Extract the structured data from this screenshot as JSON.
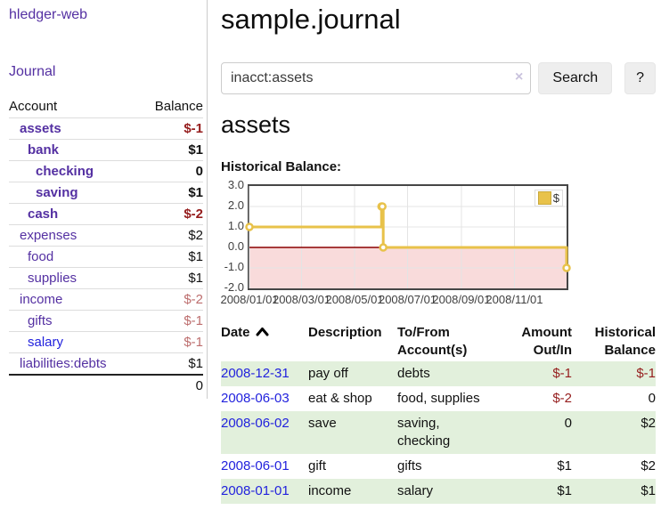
{
  "sidebar": {
    "brand": "hledger-web",
    "nav_journal": "Journal",
    "accounts_table": {
      "header_account": "Account",
      "header_balance": "Balance",
      "rows": [
        {
          "name": "assets",
          "balance": "$-1",
          "depth": 1,
          "bold": true,
          "balance_class": "neg-strong",
          "link": "purple"
        },
        {
          "name": "bank",
          "balance": "$1",
          "depth": 2,
          "bold": true,
          "balance_class": "",
          "link": "purple"
        },
        {
          "name": "checking",
          "balance": "0",
          "depth": 3,
          "bold": true,
          "balance_class": "",
          "link": "purple"
        },
        {
          "name": "saving",
          "balance": "$1",
          "depth": 3,
          "bold": true,
          "balance_class": "",
          "link": "purple"
        },
        {
          "name": "cash",
          "balance": "$-2",
          "depth": 2,
          "bold": true,
          "balance_class": "neg-strong",
          "link": "purple"
        },
        {
          "name": "expenses",
          "balance": "$2",
          "depth": 1,
          "bold": false,
          "balance_class": "",
          "link": "purple"
        },
        {
          "name": "food",
          "balance": "$1",
          "depth": 2,
          "bold": false,
          "balance_class": "",
          "link": "purple"
        },
        {
          "name": "supplies",
          "balance": "$1",
          "depth": 2,
          "bold": false,
          "balance_class": "",
          "link": "purple"
        },
        {
          "name": "income",
          "balance": "$-2",
          "depth": 1,
          "bold": false,
          "balance_class": "neg-muted",
          "link": "purple"
        },
        {
          "name": "gifts",
          "balance": "$-1",
          "depth": 2,
          "bold": false,
          "balance_class": "neg-muted",
          "link": "purple"
        },
        {
          "name": "salary",
          "balance": "$-1",
          "depth": 2,
          "bold": false,
          "balance_class": "neg-muted",
          "link": "blue"
        },
        {
          "name": "liabilities:debts",
          "balance": "$1",
          "depth": 1,
          "bold": false,
          "balance_class": "",
          "link": "purple"
        }
      ],
      "total": "0"
    }
  },
  "main": {
    "title": "sample.journal",
    "search": {
      "value": "inacct:assets",
      "clear_icon": "×",
      "button_label": "Search",
      "help_label": "?"
    },
    "account_heading": "assets",
    "chart_label": "Historical Balance:"
  },
  "chart_data": {
    "type": "line",
    "step": true,
    "title": "Historical Balance",
    "series": [
      {
        "name": "$",
        "color": "#e8c24a",
        "points": [
          {
            "date": "2008-01-01",
            "value": 1
          },
          {
            "date": "2008-06-01",
            "value": 2
          },
          {
            "date": "2008-06-02",
            "value": 2
          },
          {
            "date": "2008-06-03",
            "value": 0
          },
          {
            "date": "2008-12-31",
            "value": -1
          }
        ]
      }
    ],
    "xlim": [
      "2008-01-01",
      "2008-12-31"
    ],
    "ylim": [
      -2,
      3
    ],
    "x_ticks": [
      {
        "label": "2008/01/01",
        "date": "2008-01-01"
      },
      {
        "label": "2008/03/01",
        "date": "2008-03-01"
      },
      {
        "label": "2008/05/01",
        "date": "2008-05-01"
      },
      {
        "label": "2008/07/01",
        "date": "2008-07-01"
      },
      {
        "label": "2008/09/01",
        "date": "2008-09-01"
      },
      {
        "label": "2008/11/01",
        "date": "2008-11-01"
      }
    ],
    "y_ticks": [
      {
        "label": "3.0",
        "value": 3
      },
      {
        "label": "2.0",
        "value": 2
      },
      {
        "label": "1.0",
        "value": 1
      },
      {
        "label": "0.0",
        "value": 0
      },
      {
        "label": "-1.0",
        "value": -1
      },
      {
        "label": "-2.0",
        "value": -2
      }
    ],
    "y_gridlines": [
      2,
      1,
      -1
    ],
    "zero_line_value": 0,
    "negative_region": {
      "from": 0,
      "fill": "#f9dbdb"
    },
    "legend": {
      "position": "top-right",
      "label": "$"
    },
    "grid": true
  },
  "register_table": {
    "headers": {
      "date": "Date",
      "description": "Description",
      "accounts_line1": "To/From",
      "accounts_line2": "Account(s)",
      "amount_line1": "Amount",
      "amount_line2": "Out/In",
      "balance_line1": "Historical",
      "balance_line2": "Balance"
    },
    "rows": [
      {
        "date": "2008-12-31",
        "description": "pay off",
        "accounts": "debts",
        "amount": "$-1",
        "amount_negative": true,
        "balance": "$-1",
        "balance_negative": true,
        "green": true
      },
      {
        "date": "2008-06-03",
        "description": "eat & shop",
        "accounts": "food, supplies",
        "amount": "$-2",
        "amount_negative": true,
        "balance": "0",
        "balance_negative": false,
        "green": false
      },
      {
        "date": "2008-06-02",
        "description": "save",
        "accounts": "saving, checking",
        "amount": "0",
        "amount_negative": false,
        "balance": "$2",
        "balance_negative": false,
        "green": true
      },
      {
        "date": "2008-06-01",
        "description": "gift",
        "accounts": "gifts",
        "amount": "$1",
        "amount_negative": false,
        "balance": "$2",
        "balance_negative": false,
        "green": false
      },
      {
        "date": "2008-01-01",
        "description": "income",
        "accounts": "salary",
        "amount": "$1",
        "amount_negative": false,
        "balance": "$1",
        "balance_negative": false,
        "green": true
      }
    ]
  },
  "colors": {
    "accent_purple": "#5430a2",
    "link_blue": "#2222dd",
    "negative_strong": "#951d1d",
    "negative_muted": "#bd6e6e",
    "row_green": "#e2f0dc",
    "chart_gold": "#e8c24a",
    "chart_negative_fill": "#f9dbdb",
    "zero_line": "#8b0000",
    "chart_border": "#464646",
    "gridline": "#e4e4e4"
  }
}
